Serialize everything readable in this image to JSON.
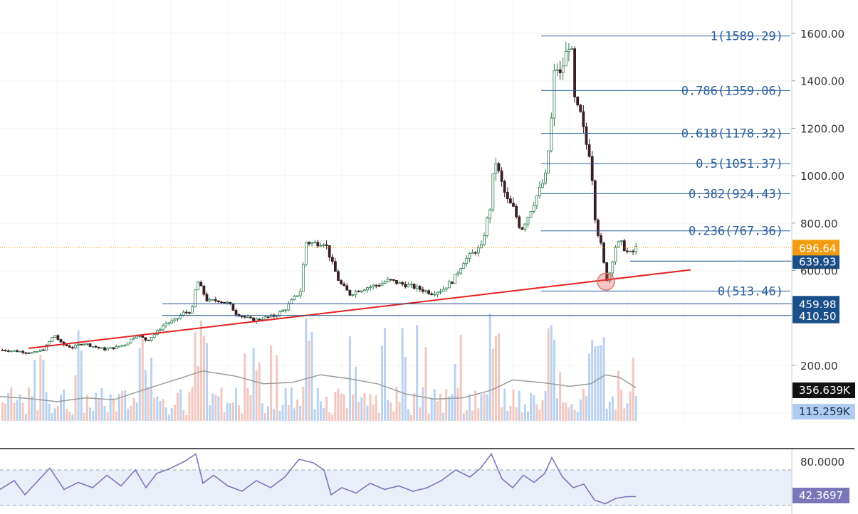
{
  "colors": {
    "up": "#2e7d4f",
    "down": "#3a1f24",
    "trendline": "#e82020",
    "fib": "#2a5f9e",
    "last_price": "#f39c12",
    "level_tag": "#1b4f8a",
    "volume_up": "#b9d2ef",
    "volume_down": "#f1c7bf",
    "volume_ma": "#9c9c9c",
    "rsi_line": "#7a76b8",
    "rsi_band": "#e9eff9"
  },
  "chart_data": {
    "type": "candlestick",
    "price_axis": {
      "ticks": [
        "1600.00",
        "1400.00",
        "1200.00",
        "1000.00",
        "800.00",
        "600.00",
        "200.00"
      ],
      "range": [
        280,
        1660
      ]
    },
    "price_path": [
      [
        0,
        265
      ],
      [
        15,
        262
      ],
      [
        30,
        258
      ],
      [
        45,
        252
      ],
      [
        60,
        268
      ],
      [
        75,
        330
      ],
      [
        85,
        290
      ],
      [
        100,
        275
      ],
      [
        115,
        295
      ],
      [
        130,
        280
      ],
      [
        145,
        268
      ],
      [
        160,
        275
      ],
      [
        175,
        290
      ],
      [
        190,
        330
      ],
      [
        205,
        305
      ],
      [
        215,
        330
      ],
      [
        230,
        375
      ],
      [
        245,
        390
      ],
      [
        255,
        420
      ],
      [
        268,
        430
      ],
      [
        275,
        560
      ],
      [
        282,
        520
      ],
      [
        290,
        470
      ],
      [
        305,
        475
      ],
      [
        320,
        460
      ],
      [
        330,
        420
      ],
      [
        345,
        400
      ],
      [
        355,
        390
      ],
      [
        370,
        400
      ],
      [
        385,
        410
      ],
      [
        400,
        440
      ],
      [
        410,
        480
      ],
      [
        420,
        510
      ],
      [
        428,
        720
      ],
      [
        440,
        715
      ],
      [
        455,
        720
      ],
      [
        465,
        630
      ],
      [
        475,
        550
      ],
      [
        490,
        500
      ],
      [
        500,
        515
      ],
      [
        515,
        530
      ],
      [
        530,
        540
      ],
      [
        545,
        560
      ],
      [
        560,
        545
      ],
      [
        575,
        535
      ],
      [
        590,
        520
      ],
      [
        605,
        505
      ],
      [
        620,
        520
      ],
      [
        635,
        560
      ],
      [
        650,
        640
      ],
      [
        665,
        680
      ],
      [
        675,
        700
      ],
      [
        680,
        780
      ],
      [
        688,
        880
      ],
      [
        693,
        1080
      ],
      [
        700,
        1000
      ],
      [
        710,
        900
      ],
      [
        720,
        860
      ],
      [
        730,
        770
      ],
      [
        740,
        830
      ],
      [
        750,
        900
      ],
      [
        758,
        950
      ],
      [
        765,
        1000
      ],
      [
        772,
        1200
      ],
      [
        778,
        1480
      ],
      [
        785,
        1420
      ],
      [
        792,
        1500
      ],
      [
        800,
        1580
      ],
      [
        806,
        1300
      ],
      [
        815,
        1250
      ],
      [
        820,
        1150
      ],
      [
        828,
        1080
      ],
      [
        835,
        800
      ],
      [
        843,
        700
      ],
      [
        850,
        560
      ],
      [
        856,
        600
      ],
      [
        862,
        700
      ],
      [
        870,
        720
      ],
      [
        878,
        680
      ],
      [
        885,
        670
      ],
      [
        893,
        700
      ]
    ],
    "volume_axis": {
      "labels": [
        "356.639K",
        "115.259K"
      ]
    },
    "volume_ma_path": [
      [
        0,
        0.38
      ],
      [
        40,
        0.35
      ],
      [
        80,
        0.3
      ],
      [
        120,
        0.36
      ],
      [
        160,
        0.33
      ],
      [
        200,
        0.48
      ],
      [
        240,
        0.62
      ],
      [
        285,
        0.78
      ],
      [
        330,
        0.7
      ],
      [
        370,
        0.58
      ],
      [
        410,
        0.6
      ],
      [
        450,
        0.72
      ],
      [
        490,
        0.66
      ],
      [
        530,
        0.58
      ],
      [
        570,
        0.42
      ],
      [
        610,
        0.34
      ],
      [
        650,
        0.36
      ],
      [
        690,
        0.48
      ],
      [
        720,
        0.64
      ],
      [
        760,
        0.6
      ],
      [
        800,
        0.54
      ],
      [
        830,
        0.58
      ],
      [
        850,
        0.72
      ],
      [
        870,
        0.68
      ],
      [
        893,
        0.52
      ]
    ],
    "rsi_axis": {
      "ticks": [
        "80.0000"
      ],
      "upper": 70,
      "lower": 30
    },
    "rsi_current": "42.3697",
    "rsi_path": [
      [
        0,
        48
      ],
      [
        20,
        58
      ],
      [
        35,
        42
      ],
      [
        50,
        55
      ],
      [
        70,
        72
      ],
      [
        90,
        48
      ],
      [
        110,
        56
      ],
      [
        130,
        50
      ],
      [
        150,
        64
      ],
      [
        170,
        52
      ],
      [
        190,
        70
      ],
      [
        205,
        50
      ],
      [
        220,
        66
      ],
      [
        240,
        72
      ],
      [
        260,
        80
      ],
      [
        275,
        88
      ],
      [
        285,
        55
      ],
      [
        300,
        64
      ],
      [
        320,
        52
      ],
      [
        340,
        46
      ],
      [
        360,
        58
      ],
      [
        380,
        50
      ],
      [
        400,
        62
      ],
      [
        420,
        82
      ],
      [
        440,
        78
      ],
      [
        455,
        70
      ],
      [
        465,
        42
      ],
      [
        480,
        50
      ],
      [
        500,
        44
      ],
      [
        520,
        55
      ],
      [
        540,
        48
      ],
      [
        560,
        52
      ],
      [
        580,
        46
      ],
      [
        600,
        50
      ],
      [
        620,
        58
      ],
      [
        640,
        70
      ],
      [
        660,
        62
      ],
      [
        675,
        72
      ],
      [
        690,
        88
      ],
      [
        705,
        60
      ],
      [
        720,
        50
      ],
      [
        735,
        64
      ],
      [
        750,
        56
      ],
      [
        765,
        66
      ],
      [
        775,
        84
      ],
      [
        790,
        62
      ],
      [
        805,
        50
      ],
      [
        820,
        54
      ],
      [
        835,
        36
      ],
      [
        850,
        32
      ],
      [
        865,
        38
      ],
      [
        880,
        40
      ],
      [
        893,
        40
      ]
    ],
    "fib_levels": [
      {
        "label": "1(1589.29)",
        "value": 1589.29
      },
      {
        "label": "0.786(1359.06)",
        "value": 1359.06
      },
      {
        "label": "0.618(1178.32)",
        "value": 1178.32
      },
      {
        "label": "0.5(1051.37)",
        "value": 1051.37
      },
      {
        "label": "0.382(924.43)",
        "value": 924.43
      },
      {
        "label": "0.236(767.36)",
        "value": 767.36
      },
      {
        "label": "0(513.46)",
        "value": 513.46
      }
    ],
    "horizontal_levels": [
      {
        "label": "639.93",
        "value": 639.93
      },
      {
        "label": "459.98",
        "value": 459.98
      },
      {
        "label": "410.50",
        "value": 410.5
      }
    ],
    "last_price": {
      "label": "696.64",
      "value": 696.64
    },
    "trendline": [
      [
        40,
        272
      ],
      [
        970,
        603
      ]
    ],
    "highlight_circle": {
      "x": 851,
      "y": 553
    }
  }
}
